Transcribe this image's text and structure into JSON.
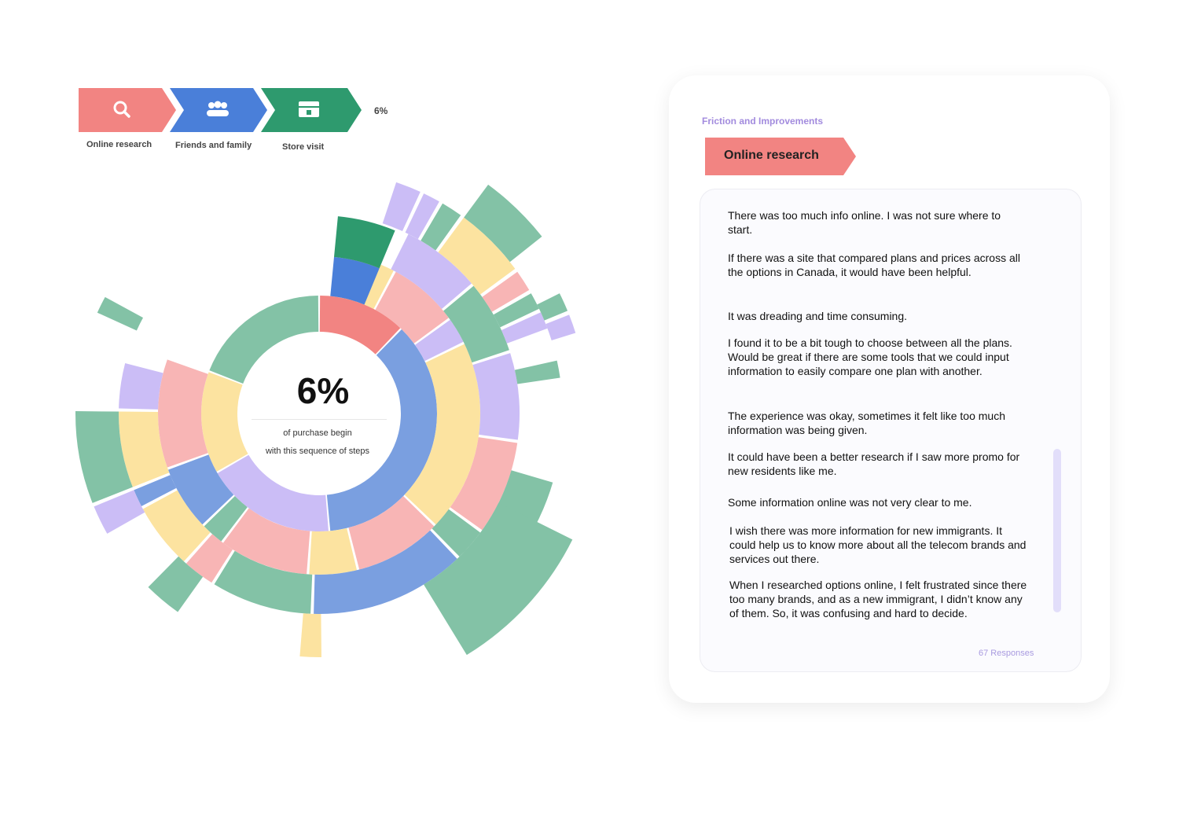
{
  "sequence": {
    "steps": [
      {
        "label": "Online research",
        "color": "#f28482",
        "icon": "search-icon"
      },
      {
        "label": "Friends and family",
        "color": "#4a7fd9",
        "icon": "people-icon"
      },
      {
        "label": "Store visit",
        "color": "#2e9a6e",
        "icon": "store-icon"
      }
    ],
    "percent": "6%"
  },
  "sunburst": {
    "center_value": "6%",
    "center_line1": "of purchase begin",
    "center_line2": "with this sequence of steps",
    "palette": {
      "online_research": "#f28482",
      "friends_family": "#7a9fe0",
      "store_visit": "#83c2a6",
      "yellow": "#fce3a0",
      "lavender": "#cbbdf6",
      "pink": "#f8b5b5",
      "highlight_green": "#2e9a6e",
      "highlight_blue": "#4a7fd9"
    }
  },
  "panel": {
    "title": "Friction and Improvements",
    "stage_label": "Online research",
    "stage_color": "#f28482",
    "responses": [
      "There was too much info online. I was not sure where to start.",
      "If there was a site that compared plans and prices across all the options in Canada, it would have been helpful.",
      "It was dreading and time consuming.",
      "I found it to be a bit tough to choose between all the plans. Would be great if there are some tools that we could input information to easily compare one plan with another.",
      "The experience was okay, sometimes it felt like too much information was being given.",
      "It could have been a better research if I saw more promo for new residents like me.",
      "Some information online was not very clear to me.",
      "I wish there was more information for new immigrants. It could help us to know more about all the telecom brands and services out there.",
      "When I researched options online, I felt frustrated since there too many brands, and as a new immigrant, I didn’t know any of them. So, it was confusing and hard to decide."
    ],
    "response_count": "67 Responses"
  }
}
